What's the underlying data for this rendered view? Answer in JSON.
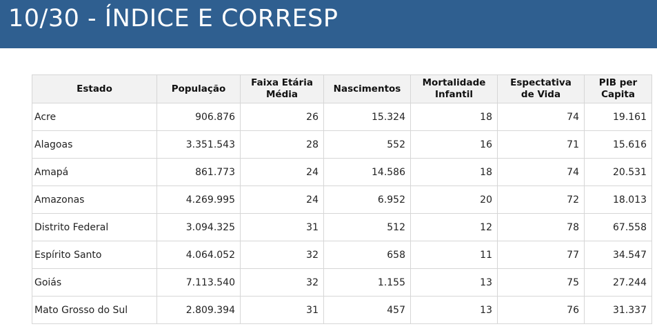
{
  "header": {
    "title": "10/30 - ÍNDICE E CORRESP"
  },
  "colors": {
    "header_bg": "#2f5f90",
    "header_text": "#ffffff",
    "table_header_bg": "#f2f2f2",
    "border": "#d6d6d6"
  },
  "table": {
    "columns": [
      "Estado",
      "População",
      "Faixa Etária Média",
      "Nascimentos",
      "Mortalidade Infantil",
      "Espectativa de Vida",
      "PIB per Capita"
    ],
    "rows": [
      [
        "Acre",
        "906.876",
        "26",
        "15.324",
        "18",
        "74",
        "19.161"
      ],
      [
        "Alagoas",
        "3.351.543",
        "28",
        "552",
        "16",
        "71",
        "15.616"
      ],
      [
        "Amapá",
        "861.773",
        "24",
        "14.586",
        "18",
        "74",
        "20.531"
      ],
      [
        "Amazonas",
        "4.269.995",
        "24",
        "6.952",
        "20",
        "72",
        "18.013"
      ],
      [
        "Distrito Federal",
        "3.094.325",
        "31",
        "512",
        "12",
        "78",
        "67.558"
      ],
      [
        "Espírito Santo",
        "4.064.052",
        "32",
        "658",
        "11",
        "77",
        "34.547"
      ],
      [
        "Goiás",
        "7.113.540",
        "32",
        "1.155",
        "13",
        "75",
        "27.244"
      ],
      [
        "Mato Grosso do Sul",
        "2.809.394",
        "31",
        "457",
        "13",
        "76",
        "31.337"
      ]
    ]
  }
}
